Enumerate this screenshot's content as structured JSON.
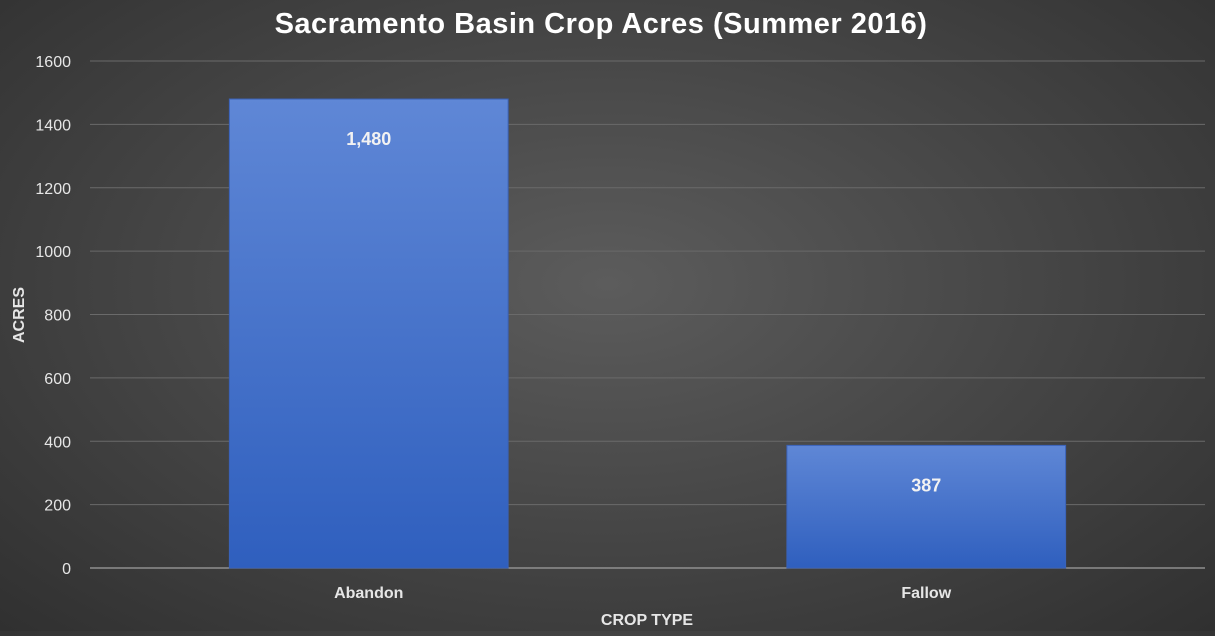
{
  "chart_data": {
    "type": "bar",
    "title": "Sacramento Basin Crop Acres (Summer 2016)",
    "xlabel": "CROP TYPE",
    "ylabel": "ACRES",
    "categories": [
      "Abandon",
      "Fallow"
    ],
    "values": [
      1480,
      387
    ],
    "data_labels": [
      "1,480",
      "387"
    ],
    "ylim": [
      0,
      1600
    ],
    "yticks": [
      0,
      200,
      400,
      600,
      800,
      1000,
      1200,
      1400,
      1600
    ],
    "grid": true,
    "legend": "none",
    "bar_color_top": "#5f87d6",
    "bar_color_bottom": "#2f5fbe"
  }
}
